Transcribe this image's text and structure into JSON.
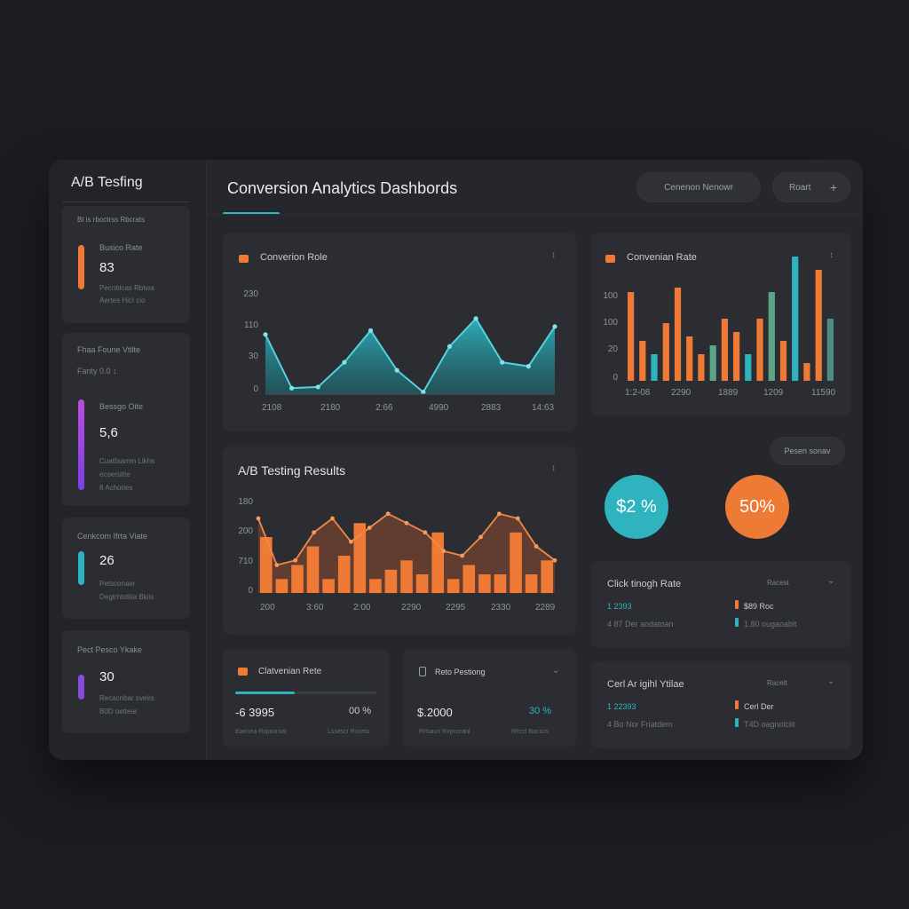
{
  "colors": {
    "teal": "#2fb4bf",
    "orange": "#ef7a35",
    "purple": "#8a4bdc",
    "panel": "#2b2d33",
    "bg": "#1c1d21"
  },
  "sidebar": {
    "title": "A/B Tesfing",
    "subtitle": "Bt is rboctrss Rbcrats",
    "cards": [
      {
        "title": "Busico Rate",
        "value": "83",
        "sub1": "Pecnblcas Rbtwa",
        "sub2": "Aertes HicI cio",
        "color": "#ef7a35"
      },
      {
        "title": "Fhaa Foune Vtilte",
        "value": "Fanty 0.0 ↕",
        "label2": "Bessgo Oite",
        "big": "5,6",
        "sub1": "Cuatfaamm Llkhs",
        "sub2": "ecoersitte",
        "sub3": "8 Achories"
      },
      {
        "title": "Cenkcom Ifrta Viate",
        "value": "26",
        "sub1": "Petsconaer",
        "sub2": "Degtrhtslitia Bkiis",
        "color": "#2fb4bf"
      },
      {
        "title": "Pect Pesco Ykake",
        "value": "30",
        "sub1": "Recacnbar sveirs",
        "sub2": "B0D oettear",
        "color": "#8a4bdc"
      }
    ]
  },
  "header": {
    "title": "Conversion Analytics Dashbords",
    "btn_left": "Cenenon Nenowr",
    "btn_right": "Roart",
    "btn_plus": "+"
  },
  "panel_conv": {
    "title": "Converion Role",
    "menu": "↕",
    "y_ticks": [
      "230",
      "110",
      "30",
      "0"
    ],
    "x_ticks": [
      "2108",
      "2180",
      "2:66",
      "4990",
      "2883",
      "14:63"
    ]
  },
  "panel_ab": {
    "title": "A/B Testing Results",
    "menu": "↕",
    "y_ticks": [
      "180",
      "200",
      "710",
      "0"
    ],
    "x_ticks": [
      "200",
      "3:60",
      "2:00",
      "2290",
      "2295",
      "2330",
      "2289"
    ]
  },
  "panel_bar": {
    "title": "Convenian Rate",
    "menu": "↕",
    "y_ticks": [
      "100",
      "100",
      "20",
      "0"
    ],
    "x_ticks": [
      "1:2-08",
      "2290",
      "1889",
      "1209",
      "11590"
    ]
  },
  "persons_btn": "Pesen sonav",
  "circles": [
    {
      "label": "$2 %",
      "color": "#2fb4bf"
    },
    {
      "label": "50%",
      "color": "#ef7a35"
    }
  ],
  "card_conv": {
    "title": "Clatvenian Rete",
    "value": "-6 3995",
    "pct": "00 %",
    "foot_l": "Eaenea Rxpcoroat",
    "foot_r": "Lssesct Rocelo",
    "progress": 0.42
  },
  "card_rate": {
    "title": "Reto Pestiong",
    "menu": "⌄",
    "value": "$.2000",
    "pct": "30 %",
    "foot_l": "Rrlsaun Rxpcoranl",
    "foot_r": "Rlrccl Bactcis"
  },
  "ctr_panel": {
    "title": "Click tinogh Rate",
    "right_label": "Racest",
    "menu": "⌄",
    "rows": [
      {
        "left": "1 2393",
        "right": "$89 Roc",
        "mark": "#ef7a35"
      },
      {
        "left": "4 87 Der aodatoan",
        "right": "1.80 ougaoabit",
        "mark": "#2fb4bf"
      }
    ]
  },
  "cpv_panel": {
    "title": "Cerl Ar igihl Ytilae",
    "right_label": "Racelt",
    "menu": "⌄",
    "rows": [
      {
        "left": "1 22393",
        "right": "Cerl Der",
        "mark": "#ef7a35"
      },
      {
        "left": "4 Bo Nor Friatdem",
        "right": "T4D oagnolclit",
        "mark": "#2fb4bf"
      }
    ]
  },
  "chart_data": [
    {
      "type": "area",
      "title": "Converion Role",
      "x": [
        0,
        1,
        2,
        3,
        4,
        5,
        6,
        7,
        8,
        9,
        10,
        11
      ],
      "series": [
        {
          "values": [
            150,
            15,
            18,
            80,
            160,
            60,
            5,
            120,
            190,
            80,
            70,
            170
          ]
        }
      ],
      "ylim": [
        0,
        250
      ],
      "color": "#2fb4bf"
    },
    {
      "type": "bar",
      "title": "A/B Testing Results",
      "series": [
        {
          "values": [
            120,
            30,
            60,
            100,
            30,
            80,
            150,
            30,
            50,
            70,
            40,
            130,
            30,
            60,
            40,
            40,
            130,
            40,
            70
          ]
        },
        {
          "values": [
            160,
            60,
            70,
            130,
            160,
            110,
            140,
            170,
            150,
            130,
            90,
            80,
            120,
            170,
            160,
            100,
            70
          ]
        }
      ],
      "ylim": [
        0,
        200
      ],
      "colors": [
        "#ef7a35",
        "#ef7a35"
      ]
    },
    {
      "type": "bar",
      "title": "Convenian Rate",
      "series": [
        {
          "name": "",
          "values": [
            100,
            45,
            30,
            65,
            105,
            50,
            30,
            40,
            70,
            55,
            30,
            70,
            100,
            45,
            140,
            20,
            125,
            70
          ]
        }
      ],
      "ylim": [
        0,
        145
      ]
    }
  ]
}
